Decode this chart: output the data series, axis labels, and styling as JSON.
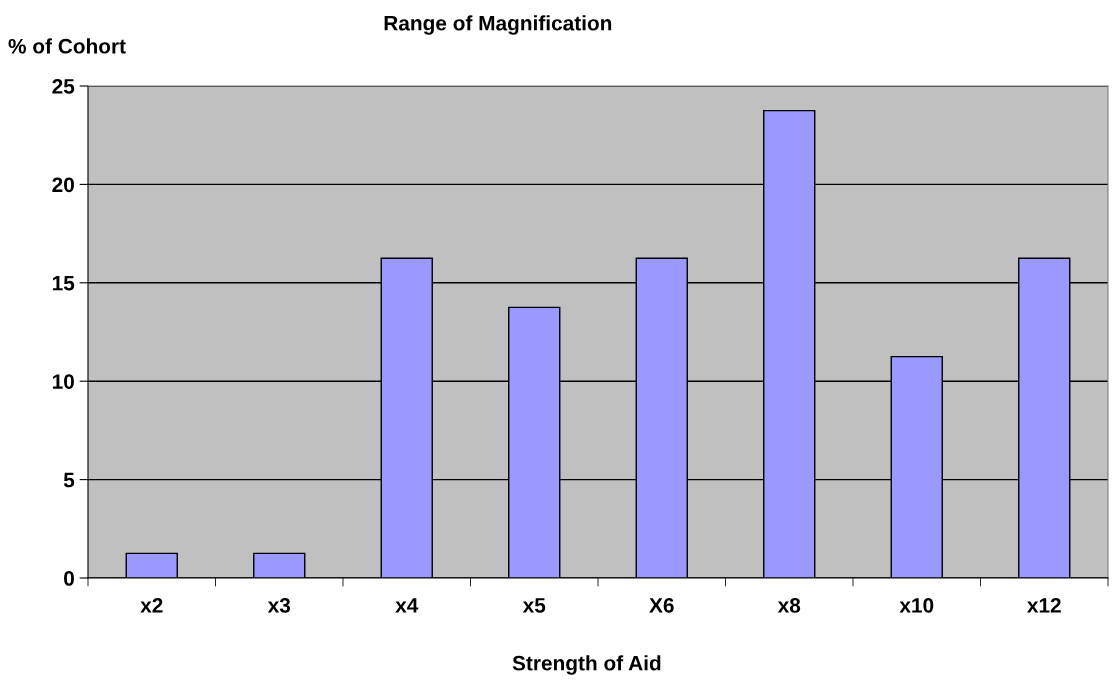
{
  "chart_data": {
    "type": "bar",
    "title": "Range of Magnification",
    "xlabel": "Strength of Aid",
    "ylabel": "% of Cohort",
    "categories": [
      "x2",
      "x3",
      "x4",
      "x5",
      "X6",
      "x8",
      "x10",
      "x12"
    ],
    "values": [
      1.25,
      1.25,
      16.25,
      13.75,
      16.25,
      23.75,
      11.25,
      16.25
    ],
    "color": "#9999ff",
    "ylim": [
      0,
      25
    ],
    "yticks": [
      0,
      5,
      10,
      15,
      20,
      25
    ],
    "grid": "y",
    "legend": false
  }
}
